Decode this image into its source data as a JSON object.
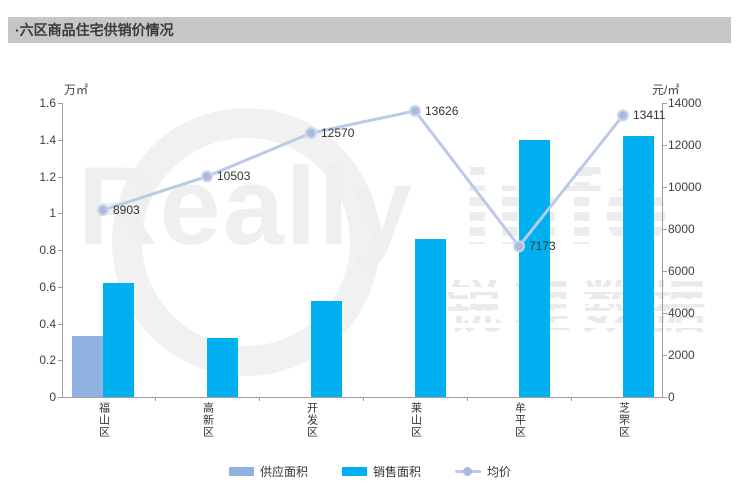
{
  "header": {
    "title": "·六区商品住宅供销价情况"
  },
  "watermark": {
    "latin_plain": "Really",
    "latin_striped": "info",
    "cn": "锐理数据"
  },
  "colors": {
    "header_bg": "#c6c6c6",
    "axis_line": "#9f9f9f",
    "tick_text": "#404040",
    "supply_bar": "#8fb2e0",
    "sales_bar": "#00b0f0",
    "price_line": "#bcc9e8",
    "price_marker": "#a9bcde"
  },
  "chart_data": {
    "type": "bar+line",
    "title": "六区商品住宅供销价情况",
    "categories": [
      "福山区",
      "高新区",
      "开发区",
      "莱山区",
      "牟平区",
      "芝罘区"
    ],
    "left_axis": {
      "unit": "万㎡",
      "min": 0,
      "max": 1.6,
      "ticks": [
        0,
        0.2,
        0.4,
        0.6,
        0.8,
        1,
        1.2,
        1.4,
        1.6
      ]
    },
    "right_axis": {
      "unit": "元/㎡",
      "min": 0,
      "max": 14000,
      "ticks": [
        0,
        2000,
        4000,
        6000,
        8000,
        10000,
        12000,
        14000
      ]
    },
    "series": [
      {
        "name": "供应面积",
        "type": "bar",
        "axis": "left",
        "color": "#8fb2e0",
        "values": [
          0.33,
          0,
          0,
          0,
          0,
          0
        ]
      },
      {
        "name": "销售面积",
        "type": "bar",
        "axis": "left",
        "color": "#00b0f0",
        "values": [
          0.62,
          0.32,
          0.52,
          0.86,
          1.4,
          1.42
        ]
      },
      {
        "name": "均价",
        "type": "line",
        "axis": "right",
        "color": "#bcc9e8",
        "marker_color": "#a9bcde",
        "values": [
          8903,
          10503,
          12570,
          13626,
          7173,
          13411
        ],
        "labels": [
          "8903",
          "10503",
          "12570",
          "13626",
          "7173",
          "13411"
        ]
      }
    ],
    "legend_position": "bottom",
    "grid": false
  }
}
